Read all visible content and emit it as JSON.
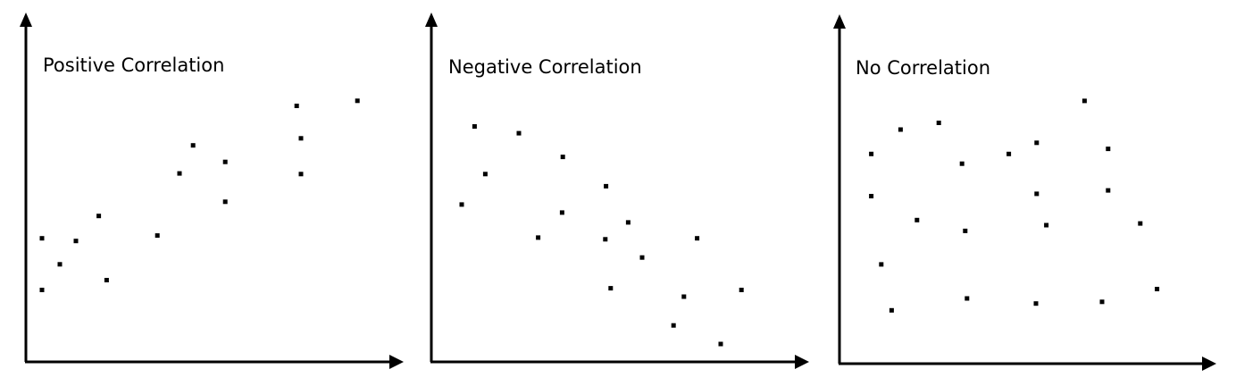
{
  "colors": {
    "axis": "#000000",
    "point": "#000000",
    "background": "#ffffff"
  },
  "chart_data": [
    {
      "type": "scatter",
      "title": "Positive Correlation",
      "xlabel": "",
      "ylabel": "",
      "grid": false,
      "xlim": [
        0,
        100
      ],
      "ylim": [
        0,
        100
      ],
      "points": [
        {
          "x": 4.5,
          "y": 36.6
        },
        {
          "x": 4.5,
          "y": 21.3
        },
        {
          "x": 9.5,
          "y": 28.9
        },
        {
          "x": 14.0,
          "y": 35.8
        },
        {
          "x": 20.4,
          "y": 43.2
        },
        {
          "x": 22.6,
          "y": 24.2
        },
        {
          "x": 36.8,
          "y": 37.4
        },
        {
          "x": 43.0,
          "y": 55.8
        },
        {
          "x": 46.8,
          "y": 64.1
        },
        {
          "x": 55.8,
          "y": 59.2
        },
        {
          "x": 55.8,
          "y": 47.4
        },
        {
          "x": 75.8,
          "y": 75.8
        },
        {
          "x": 77.0,
          "y": 66.2
        },
        {
          "x": 77.0,
          "y": 55.6
        },
        {
          "x": 92.8,
          "y": 77.3
        }
      ]
    },
    {
      "type": "scatter",
      "title": "Negative Correlation",
      "xlabel": "",
      "ylabel": "",
      "grid": false,
      "xlim": [
        0,
        100
      ],
      "ylim": [
        0,
        100
      ],
      "points": [
        {
          "x": 8.5,
          "y": 46.6
        },
        {
          "x": 12.1,
          "y": 69.7
        },
        {
          "x": 15.1,
          "y": 55.6
        },
        {
          "x": 24.5,
          "y": 67.7
        },
        {
          "x": 29.9,
          "y": 36.8
        },
        {
          "x": 36.6,
          "y": 44.2
        },
        {
          "x": 36.8,
          "y": 60.7
        },
        {
          "x": 48.7,
          "y": 36.3
        },
        {
          "x": 48.9,
          "y": 52.0
        },
        {
          "x": 50.2,
          "y": 21.8
        },
        {
          "x": 55.1,
          "y": 41.3
        },
        {
          "x": 59.0,
          "y": 30.9
        },
        {
          "x": 67.8,
          "y": 10.8
        },
        {
          "x": 70.7,
          "y": 19.3
        },
        {
          "x": 74.4,
          "y": 36.6
        },
        {
          "x": 81.0,
          "y": 5.3
        },
        {
          "x": 86.8,
          "y": 21.3
        }
      ]
    },
    {
      "type": "scatter",
      "title": "No Correlation",
      "xlabel": "",
      "ylabel": "",
      "grid": false,
      "xlim": [
        0,
        100
      ],
      "ylim": [
        0,
        100
      ],
      "points": [
        {
          "x": 8.9,
          "y": 62.1
        },
        {
          "x": 8.9,
          "y": 49.6
        },
        {
          "x": 11.7,
          "y": 29.4
        },
        {
          "x": 14.6,
          "y": 15.8
        },
        {
          "x": 17.1,
          "y": 69.3
        },
        {
          "x": 21.7,
          "y": 42.5
        },
        {
          "x": 27.8,
          "y": 71.3
        },
        {
          "x": 34.3,
          "y": 59.2
        },
        {
          "x": 35.2,
          "y": 39.3
        },
        {
          "x": 35.7,
          "y": 19.3
        },
        {
          "x": 47.4,
          "y": 62.1
        },
        {
          "x": 55.2,
          "y": 65.4
        },
        {
          "x": 55.2,
          "y": 50.3
        },
        {
          "x": 55.0,
          "y": 17.8
        },
        {
          "x": 57.9,
          "y": 41.0
        },
        {
          "x": 68.6,
          "y": 77.8
        },
        {
          "x": 73.5,
          "y": 18.3
        },
        {
          "x": 75.2,
          "y": 63.6
        },
        {
          "x": 75.2,
          "y": 51.3
        },
        {
          "x": 84.2,
          "y": 41.5
        },
        {
          "x": 88.9,
          "y": 22.1
        }
      ]
    }
  ]
}
